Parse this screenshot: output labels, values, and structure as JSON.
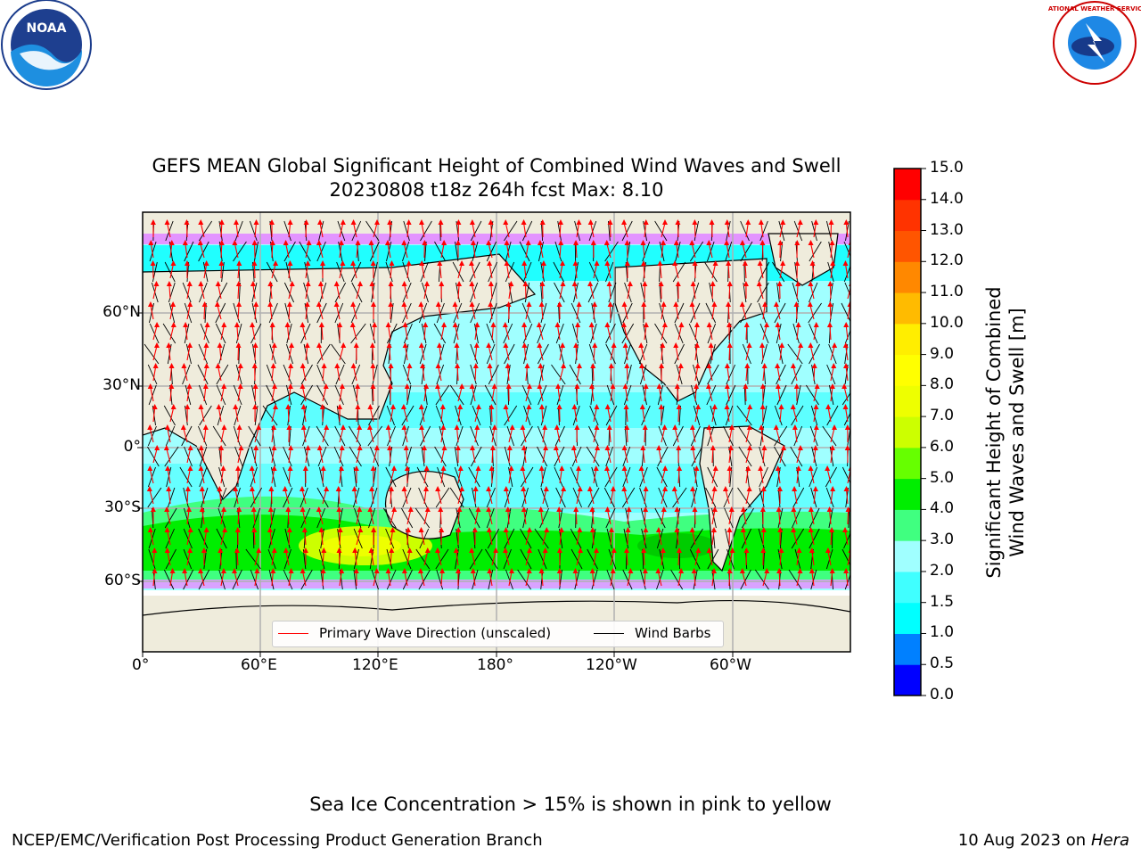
{
  "header": {
    "title": "GEFS MEAN Global Significant Height of Combined Wind Waves and Swell",
    "subtitle": "20230808 t18z 264h fcst   Max: 8.10"
  },
  "logos": {
    "left": {
      "name": "noaa-logo",
      "text": "NOAA"
    },
    "right": {
      "name": "nws-logo",
      "text": "NATIONAL WEATHER SERVICE"
    }
  },
  "map": {
    "lon_labels": [
      "0°",
      "60°E",
      "120°E",
      "180°",
      "120°W",
      "60°W"
    ],
    "lat_labels": [
      "60°N",
      "30°N",
      "0°",
      "30°S",
      "60°S"
    ],
    "legend": {
      "wave_label": "Primary Wave Direction (unscaled)",
      "barb_label": "Wind Barbs",
      "wave_color": "#ff0000",
      "barb_color": "#000000"
    },
    "colors": {
      "land": "#efecdc",
      "coast": "#000000",
      "grid": "#b0b0b0"
    }
  },
  "colorbar": {
    "label_line1": "Significant Height of Combined",
    "label_line2": "Wind Waves and Swell [m]",
    "ticks": [
      "0.0",
      "0.5",
      "1.0",
      "1.5",
      "2.0",
      "3.0",
      "4.0",
      "5.0",
      "6.0",
      "7.0",
      "8.0",
      "9.0",
      "10.0",
      "11.0",
      "12.0",
      "13.0",
      "14.0",
      "15.0"
    ],
    "colors": [
      "#0000ff",
      "#0080ff",
      "#00ffff",
      "#40ffff",
      "#a0ffff",
      "#40ff80",
      "#00ee00",
      "#66ff00",
      "#ccff00",
      "#eeff00",
      "#ffff00",
      "#ffee00",
      "#ffbb00",
      "#ff8800",
      "#ff5500",
      "#ff3300",
      "#ff0000"
    ]
  },
  "footer": {
    "note": "Sea Ice Concentration > 15% is shown in pink to yellow",
    "left": "NCEP/EMC/Verification Post Processing Product Generation Branch",
    "right_date": "10 Aug 2023 on",
    "right_host": "Hera"
  }
}
